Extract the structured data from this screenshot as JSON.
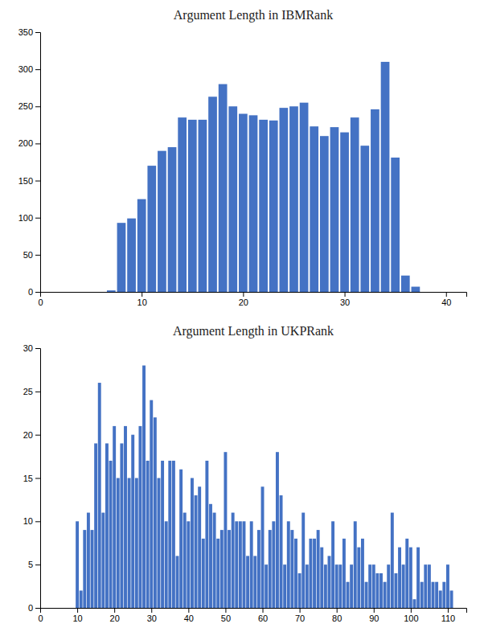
{
  "chart_data": [
    {
      "type": "bar",
      "title": "Argument Length in IBMRank",
      "color": "#4472C4",
      "x": [
        7,
        8,
        9,
        10,
        11,
        12,
        13,
        14,
        15,
        16,
        17,
        18,
        19,
        20,
        21,
        22,
        23,
        24,
        25,
        26,
        27,
        28,
        29,
        30,
        31,
        32,
        33,
        34,
        35,
        36,
        37
      ],
      "values": [
        2,
        93,
        99,
        125,
        170,
        190,
        195,
        235,
        232,
        232,
        263,
        280,
        250,
        240,
        238,
        232,
        231,
        248,
        250,
        255,
        223,
        210,
        222,
        215,
        235,
        197,
        246,
        310,
        181,
        22,
        7
      ],
      "xlim": [
        0,
        42
      ],
      "xticks": [
        0,
        10,
        20,
        30,
        40
      ],
      "ylim": [
        0,
        350
      ],
      "yticks": [
        0,
        50,
        100,
        150,
        200,
        250,
        300,
        350
      ],
      "grid": false
    },
    {
      "type": "bar",
      "title": "Argument Length in UKPRank",
      "color": "#4472C4",
      "x": [
        10,
        11,
        12,
        13,
        14,
        15,
        16,
        17,
        18,
        19,
        20,
        21,
        22,
        23,
        24,
        25,
        26,
        27,
        28,
        29,
        30,
        31,
        32,
        33,
        34,
        35,
        36,
        37,
        38,
        39,
        40,
        41,
        42,
        43,
        44,
        45,
        46,
        47,
        48,
        49,
        50,
        51,
        52,
        53,
        54,
        55,
        56,
        57,
        58,
        59,
        60,
        61,
        62,
        63,
        64,
        65,
        66,
        67,
        68,
        69,
        70,
        71,
        72,
        73,
        74,
        75,
        76,
        77,
        78,
        79,
        80,
        81,
        82,
        83,
        84,
        85,
        86,
        87,
        88,
        89,
        90,
        91,
        92,
        93,
        94,
        95,
        96,
        97,
        98,
        99,
        100,
        101,
        102,
        103,
        104,
        105,
        106,
        107,
        108,
        109,
        110,
        111
      ],
      "values": [
        10,
        2,
        9,
        11,
        9,
        19,
        26,
        11,
        19,
        17,
        21,
        15,
        19,
        21,
        15,
        20,
        15,
        21,
        28,
        17,
        24,
        22,
        15,
        17,
        10,
        17,
        17,
        6,
        16,
        11,
        10,
        15,
        13,
        14,
        8,
        17,
        12,
        11,
        8,
        9,
        18,
        9,
        11,
        10,
        10,
        10,
        6,
        10,
        6,
        9,
        14,
        5,
        9,
        10,
        18,
        13,
        5,
        10,
        9,
        8,
        4,
        11,
        5,
        8,
        8,
        9,
        7,
        5,
        6,
        10,
        5,
        5,
        8,
        3,
        5,
        10,
        7,
        8,
        3,
        5,
        5,
        4,
        4,
        3,
        5,
        11,
        4,
        7,
        5,
        8,
        7,
        1,
        7,
        3,
        5,
        5,
        3,
        3,
        2,
        3,
        5,
        2
      ],
      "xlim": [
        0,
        115
      ],
      "xticks": [
        0,
        10,
        20,
        30,
        40,
        50,
        60,
        70,
        80,
        90,
        100,
        110
      ],
      "ylim": [
        0,
        30
      ],
      "yticks": [
        0,
        5,
        10,
        15,
        20,
        25,
        30
      ],
      "grid": false
    }
  ]
}
